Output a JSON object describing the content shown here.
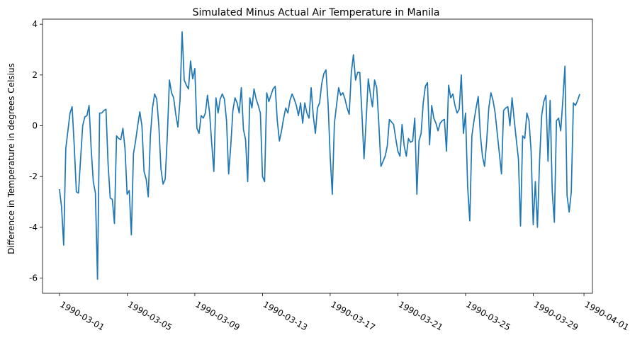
{
  "chart_data": {
    "type": "line",
    "title": "Simulated Minus Actual Air Temperature in Manila",
    "xlabel": "",
    "ylabel": "Difference in Temperature in degrees Celsius",
    "xlim": [
      "1990-02-28T00:00",
      "1990-04-01T12:00"
    ],
    "ylim": [
      -6.6,
      4.2
    ],
    "grid": false,
    "color": "#1f77b4",
    "xticks": [
      "1990-03-01",
      "1990-03-05",
      "1990-03-09",
      "1990-03-13",
      "1990-03-17",
      "1990-03-21",
      "1990-03-25",
      "1990-03-29",
      "1990-04-01"
    ],
    "yticks": [
      -6,
      -4,
      -2,
      0,
      2,
      4
    ],
    "series": [
      {
        "x_start": "1990-03-01T00:00",
        "x_step_hours": 3,
        "values": [
          -2.5,
          -3.2,
          -4.7,
          -0.9,
          -0.2,
          0.5,
          0.75,
          -0.8,
          -2.6,
          -2.65,
          -1.3,
          0.0,
          0.35,
          0.4,
          0.8,
          -0.9,
          -2.2,
          -2.65,
          -6.05,
          0.5,
          0.5,
          0.6,
          0.65,
          -1.5,
          -2.85,
          -2.9,
          -3.85,
          -0.4,
          -0.5,
          -0.55,
          -0.1,
          -0.9,
          -2.7,
          -2.55,
          -4.3,
          -1.1,
          -0.6,
          0.0,
          0.55,
          0.0,
          -1.8,
          -2.1,
          -2.8,
          -0.4,
          0.7,
          1.25,
          1.05,
          0.0,
          -1.7,
          -2.3,
          -2.1,
          -0.4,
          1.8,
          1.3,
          1.1,
          0.45,
          -0.05,
          1.0,
          3.7,
          1.8,
          1.6,
          1.45,
          2.55,
          1.85,
          2.25,
          -0.1,
          -0.3,
          0.4,
          0.3,
          0.5,
          1.2,
          0.5,
          -0.7,
          -1.8,
          1.1,
          0.5,
          1.05,
          1.25,
          1.05,
          0.2,
          -1.9,
          -0.8,
          0.6,
          1.1,
          0.9,
          0.5,
          1.5,
          -0.15,
          -0.55,
          -2.2,
          1.1,
          0.7,
          1.45,
          1.05,
          0.8,
          0.5,
          -2.0,
          -2.2,
          1.3,
          0.95,
          1.2,
          1.45,
          1.55,
          0.2,
          -0.6,
          -0.2,
          0.3,
          0.7,
          0.5,
          1.0,
          1.25,
          1.05,
          0.8,
          0.4,
          0.9,
          0.1,
          0.9,
          0.5,
          0.3,
          1.5,
          0.4,
          -0.3,
          0.7,
          0.9,
          1.65,
          2.05,
          2.2,
          0.9,
          -1.2,
          -2.7,
          0.1,
          0.8,
          1.5,
          1.2,
          1.3,
          1.05,
          0.7,
          0.45,
          2.1,
          2.8,
          1.8,
          2.1,
          2.1,
          0.5,
          -1.3,
          0.2,
          1.85,
          1.25,
          0.75,
          1.8,
          1.5,
          0.1,
          -1.6,
          -1.4,
          -1.2,
          -0.8,
          0.25,
          0.15,
          0.05,
          -0.5,
          -1.0,
          -1.2,
          0.05,
          -0.8,
          -1.2,
          -0.5,
          -0.65,
          -0.6,
          0.3,
          -2.7,
          -0.6,
          -0.3,
          0.9,
          1.55,
          1.7,
          -0.75,
          0.8,
          0.3,
          0.1,
          -0.2,
          0.1,
          0.2,
          0.25,
          -1.0,
          1.6,
          1.1,
          1.25,
          0.8,
          0.5,
          0.65,
          2.0,
          -0.3,
          0.5,
          -2.4,
          -3.75,
          -0.4,
          0.2,
          0.7,
          1.15,
          -0.35,
          -1.2,
          -1.6,
          -0.6,
          0.7,
          1.3,
          1.0,
          0.5,
          -0.3,
          -1.1,
          -1.9,
          0.6,
          0.7,
          0.75,
          0.0,
          1.1,
          0.25,
          -0.55,
          -1.3,
          -3.95,
          -0.4,
          -0.5,
          0.5,
          0.2,
          -1.0,
          -3.9,
          -2.2,
          -4.0,
          -1.4,
          0.4,
          0.95,
          1.2,
          -1.4,
          1.0,
          -2.6,
          -3.8,
          0.2,
          0.3,
          -0.2,
          1.0,
          2.35,
          -2.75,
          -3.4,
          -2.6,
          0.9,
          0.8,
          1.0,
          1.25
        ]
      }
    ]
  }
}
